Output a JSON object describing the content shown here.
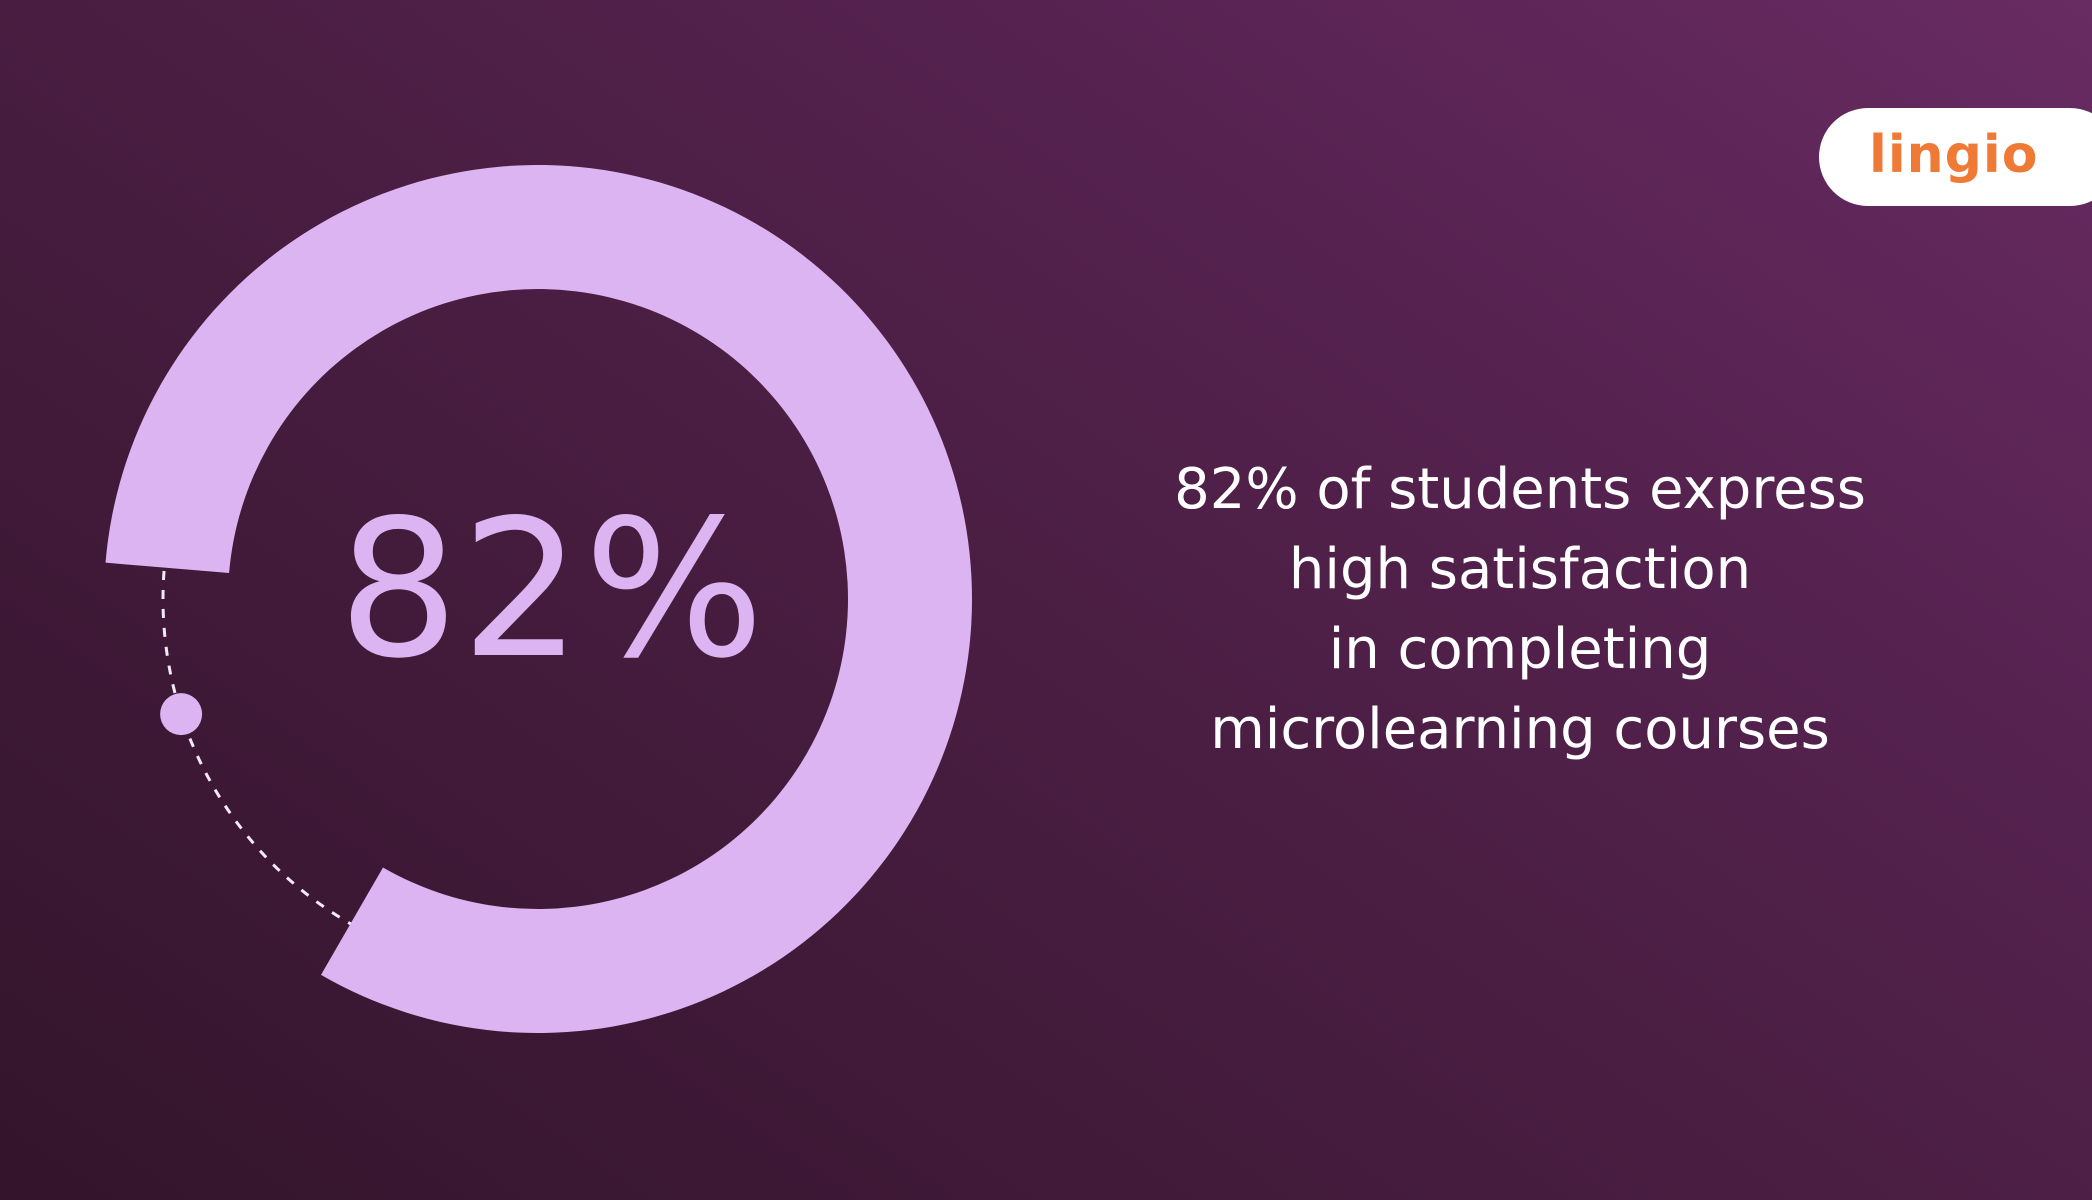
{
  "chart_data": {
    "type": "pie",
    "values": [
      82,
      18
    ],
    "value_label": "82%",
    "colors": {
      "filled": "#dcb4f1",
      "dashed_track": "#f3e9f7",
      "marker": "#dcb4f1"
    }
  },
  "statement": {
    "lines": [
      "82% of students express",
      "high satisfaction",
      "in completing",
      "microlearning courses"
    ]
  },
  "brand": {
    "name": "lingio",
    "color": "#ee7a35"
  },
  "colors": {
    "background_dark": "#33142c",
    "background_light": "#682b62",
    "text": "#ffffff"
  }
}
